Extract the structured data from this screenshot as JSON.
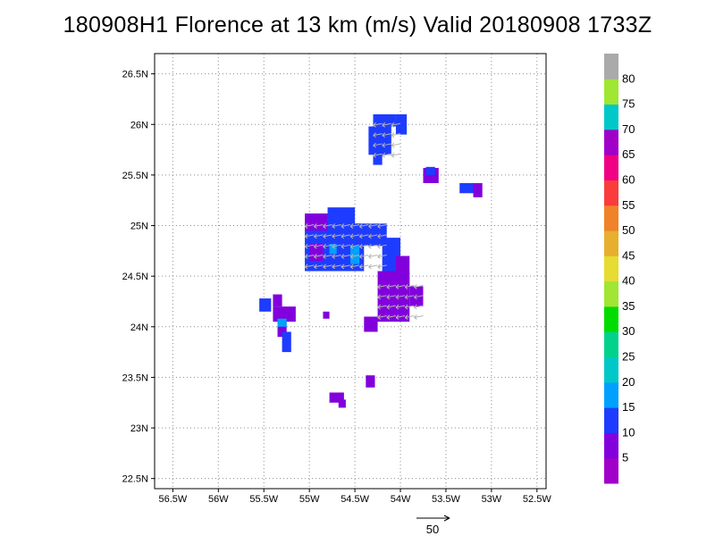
{
  "title": "180908H1 Florence at 13 km (m/s) Valid 20180908 1733Z",
  "axes": {
    "x_ticks": [
      "56.5W",
      "56W",
      "55.5W",
      "55W",
      "54.5W",
      "54W",
      "53.5W",
      "53W",
      "52.5W"
    ],
    "y_ticks": [
      "26.5N",
      "26N",
      "25.5N",
      "25N",
      "24.5N",
      "24N",
      "23.5N",
      "23N",
      "22.5N"
    ],
    "x_range_deg_west": [
      56.7,
      52.4
    ],
    "y_range_deg_north": [
      22.4,
      26.7
    ],
    "grid": true
  },
  "colorbar": {
    "labels": [
      "5",
      "10",
      "15",
      "20",
      "25",
      "30",
      "35",
      "40",
      "45",
      "50",
      "55",
      "60",
      "65",
      "70",
      "75",
      "80"
    ],
    "colors": [
      "#a000c8",
      "#8200dc",
      "#1e3cff",
      "#00a0ff",
      "#00c8c8",
      "#00d28c",
      "#00dc00",
      "#a0e632",
      "#e6dc32",
      "#e6af2d",
      "#f08228",
      "#fa3c3c",
      "#f00082",
      "#a000c8",
      "#00c8c8",
      "#a0e632",
      "#aaaaaa"
    ]
  },
  "wind_vector_legend": {
    "label": "50"
  },
  "map_data": {
    "variable": "wind speed",
    "units": "m/s",
    "regions": [
      {
        "lon": [
          -54.3,
          -53.9
        ],
        "lat": [
          25.7,
          26.1
        ],
        "speed_class": "10-15"
      },
      {
        "lon": [
          -53.7,
          -53.5
        ],
        "lat": [
          25.4,
          25.6
        ],
        "speed_class": "5-15"
      },
      {
        "lon": [
          -53.3,
          -53.1
        ],
        "lat": [
          25.3,
          25.4
        ],
        "speed_class": "5-15"
      },
      {
        "lon": [
          -55.1,
          -54.1
        ],
        "lat": [
          24.5,
          25.2
        ],
        "speed_class": "5-20"
      },
      {
        "lon": [
          -54.4,
          -53.8
        ],
        "lat": [
          23.9,
          24.7
        ],
        "speed_class": "5-10"
      },
      {
        "lon": [
          -55.6,
          -55.1
        ],
        "lat": [
          23.8,
          24.3
        ],
        "speed_class": "5-15"
      },
      {
        "lon": [
          -54.8,
          -54.6
        ],
        "lat": [
          23.2,
          23.3
        ],
        "speed_class": "5-10"
      },
      {
        "lon": [
          -54.4,
          -54.3
        ],
        "lat": [
          23.4,
          23.5
        ],
        "speed_class": "5-10"
      }
    ]
  }
}
